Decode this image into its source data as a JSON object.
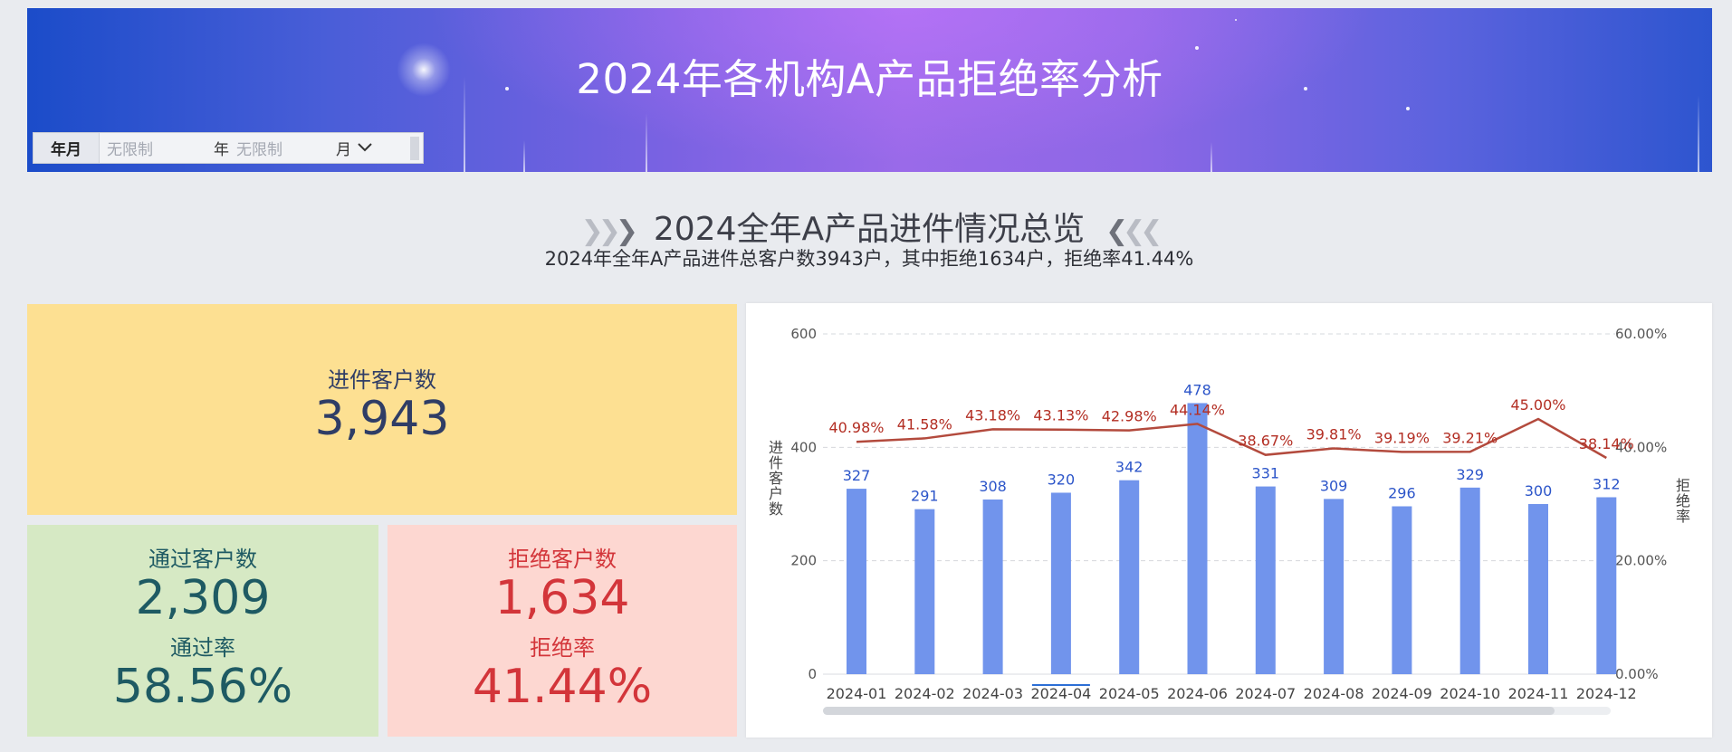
{
  "banner": {
    "title": "2024年各机构A产品拒绝率分析",
    "filter": {
      "label": "年月",
      "year_placeholder": "无限制",
      "year_unit": "年",
      "month_placeholder": "无限制",
      "month_unit": "月"
    }
  },
  "overview": {
    "title": "2024全年A产品进件情况总览",
    "subtitle": "2024年全年A产品进件总客户数3943户，其中拒绝1634户，拒绝率41.44%"
  },
  "kpi": {
    "total_label": "进件客户数",
    "total_value": "3,943",
    "pass_label": "通过客户数",
    "pass_value": "2,309",
    "pass_rate_label": "通过率",
    "pass_rate_value": "58.56%",
    "reject_label": "拒绝客户数",
    "reject_value": "1,634",
    "reject_rate_label": "拒绝率",
    "reject_rate_value": "41.44%"
  },
  "colors": {
    "bar": "#7194ec",
    "line": "#b34a3d",
    "total_card": "#fde092",
    "pass_card": "#d6e9c4",
    "reject_card": "#fdd7d1"
  },
  "chart_data": {
    "type": "bar",
    "categories": [
      "2024-01",
      "2024-02",
      "2024-03",
      "2024-04",
      "2024-05",
      "2024-06",
      "2024-07",
      "2024-08",
      "2024-09",
      "2024-10",
      "2024-11",
      "2024-12"
    ],
    "series": [
      {
        "name": "进件客户数",
        "type": "bar",
        "axis": "left",
        "values": [
          327,
          291,
          308,
          320,
          342,
          478,
          331,
          309,
          296,
          329,
          300,
          312
        ],
        "labels": [
          "327",
          "291",
          "308",
          "320",
          "342",
          "478",
          "331",
          "309",
          "296",
          "329",
          "300",
          "312"
        ]
      },
      {
        "name": "拒绝率",
        "type": "line",
        "axis": "right",
        "values": [
          40.98,
          41.58,
          43.18,
          43.13,
          42.98,
          44.14,
          38.67,
          39.81,
          39.19,
          39.21,
          45.0,
          38.14
        ],
        "labels": [
          "40.98%",
          "41.58%",
          "43.18%",
          "43.13%",
          "42.98%",
          "44.14%",
          "38.67%",
          "39.81%",
          "39.19%",
          "39.21%",
          "45.00%",
          "38.14%"
        ]
      }
    ],
    "ylabel_left": "进件客户数",
    "ylabel_right": "拒绝率",
    "ylim_left": [
      0,
      600
    ],
    "ylim_right": [
      0,
      60
    ],
    "yticks_left": [
      "0",
      "200",
      "400",
      "600"
    ],
    "yticks_right": [
      "0.00%",
      "20.00%",
      "40.00%",
      "60.00%"
    ],
    "grid": true,
    "highlighted_category": "2024-04"
  }
}
